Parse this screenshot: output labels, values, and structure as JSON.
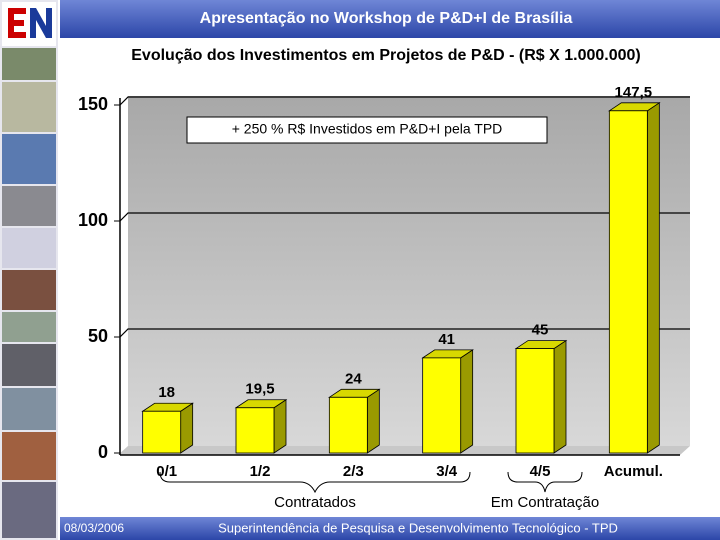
{
  "header": {
    "title": "Apresentação no Workshop de P&D+I de Brasília"
  },
  "chart_data": {
    "type": "bar",
    "title": "Evolução dos Investimentos em Projetos de P&D - (R$ X 1.000.000)",
    "categories": [
      "0/1",
      "1/2",
      "2/3",
      "3/4",
      "4/5",
      "Acumul."
    ],
    "values": [
      18,
      19.5,
      24,
      41,
      45,
      147.5
    ],
    "value_labels": [
      "18",
      "19,5",
      "24",
      "41",
      "45",
      "147,5"
    ],
    "color": "#ffff00",
    "ylim": [
      0,
      150
    ],
    "yticks": [
      0,
      50,
      100,
      150
    ],
    "grid": true,
    "annotation": "+ 250 % R$ Investidos em P&D+I pela TPD",
    "group_labels": [
      "Contratados",
      "Em Contratação"
    ]
  },
  "footer": {
    "date": "08/03/2006",
    "text": "Superintendência de Pesquisa e Desenvolvimento Tecnológico - TPD"
  }
}
